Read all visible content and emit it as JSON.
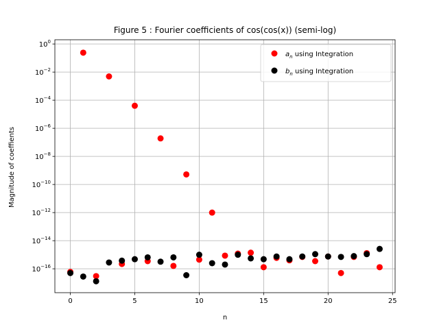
{
  "chart_data": {
    "type": "scatter",
    "title": "Figure 5 : Fourier coefficients of cos(cos(x)) (semi-log)",
    "xlabel": "n",
    "ylabel": "Magnitude of coeffients",
    "xlim": [
      -1.2,
      25.2
    ],
    "ylim": [
      -17.7,
      0.3
    ],
    "yscale": "log",
    "grid": true,
    "legend_position": "upper-right",
    "x_ticks": [
      0,
      5,
      10,
      15,
      20,
      25
    ],
    "y_ticks": [
      {
        "exp": 0,
        "label": "10^0"
      },
      {
        "exp": -2,
        "label": "10^-2"
      },
      {
        "exp": -4,
        "label": "10^-4"
      },
      {
        "exp": -6,
        "label": "10^-6"
      },
      {
        "exp": -8,
        "label": "10^-8"
      },
      {
        "exp": -10,
        "label": "10^-10"
      },
      {
        "exp": -12,
        "label": "10^-12"
      },
      {
        "exp": -14,
        "label": "10^-14"
      },
      {
        "exp": -16,
        "label": "10^-16"
      }
    ],
    "series": [
      {
        "name": "a_n using Integration",
        "legend_italic": "a",
        "legend_sub": "n",
        "legend_rest": " using Integration",
        "color": "#ff0000",
        "x": [
          0,
          1,
          2,
          3,
          4,
          5,
          6,
          7,
          8,
          9,
          10,
          11,
          12,
          13,
          14,
          15,
          16,
          17,
          18,
          19,
          20,
          21,
          22,
          23,
          24
        ],
        "y": [
          6e-17,
          0.24,
          3e-17,
          0.0049,
          2.2e-16,
          4e-05,
          3.5e-16,
          1.9e-07,
          1.6e-16,
          5.2e-10,
          4.5e-16,
          1e-12,
          8.6e-16,
          1.2e-15,
          1.4e-15,
          1.3e-16,
          6e-16,
          4e-16,
          7e-16,
          3.5e-16,
          7.5e-16,
          5e-17,
          7e-16,
          1.3e-15,
          1.3e-16
        ]
      },
      {
        "name": "b_n using Integration",
        "legend_italic": "b",
        "legend_sub": "n",
        "legend_rest": " using Integration",
        "color": "#000000",
        "x": [
          0,
          1,
          2,
          3,
          4,
          5,
          6,
          7,
          8,
          9,
          10,
          11,
          12,
          13,
          14,
          15,
          16,
          17,
          18,
          19,
          20,
          21,
          22,
          23,
          24
        ],
        "y": [
          5e-17,
          2.8e-17,
          1.3e-17,
          2.8e-16,
          3.8e-16,
          4.8e-16,
          6.5e-16,
          3.2e-16,
          6.5e-16,
          3.5e-17,
          1e-15,
          2.5e-16,
          2e-16,
          1e-15,
          5.5e-16,
          4.8e-16,
          7.5e-16,
          4.8e-16,
          7.5e-16,
          1.1e-15,
          7.5e-16,
          7e-16,
          8e-16,
          1.1e-15,
          2.6e-15
        ]
      }
    ]
  }
}
